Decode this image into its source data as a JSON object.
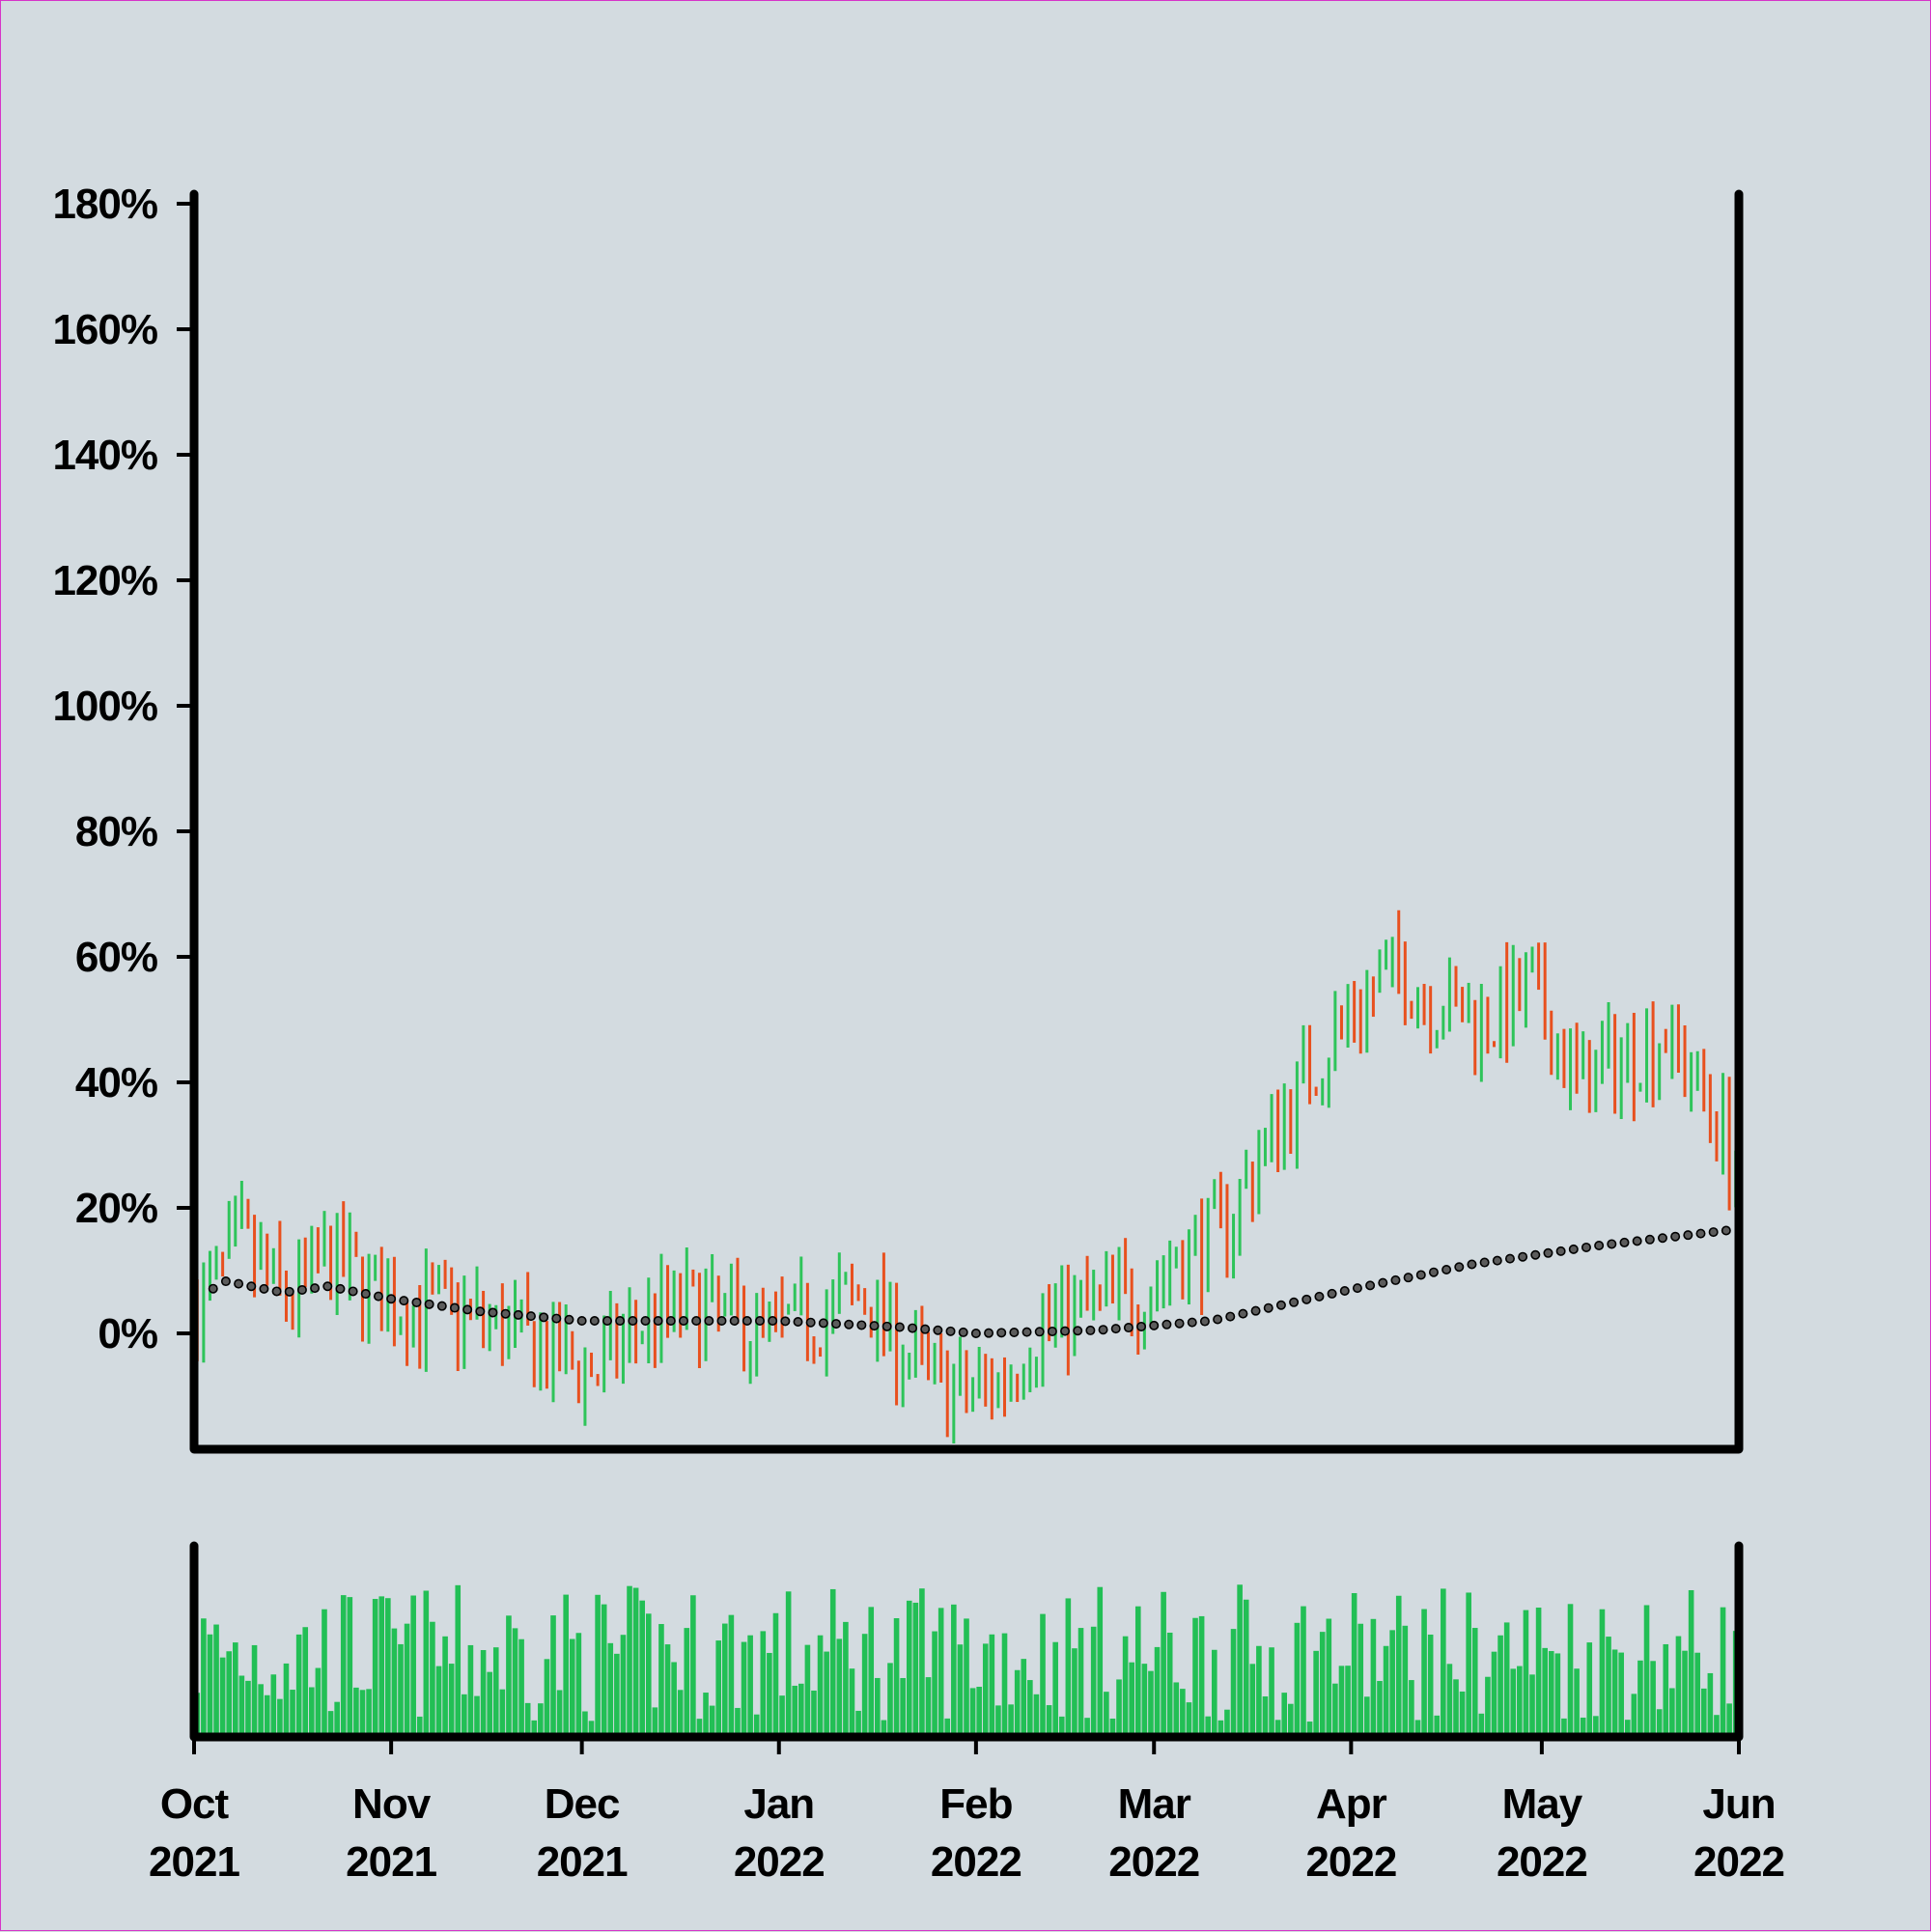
{
  "chart_data": {
    "type": "ohlc",
    "title": "",
    "xlabel": "",
    "ylabel": "",
    "x_range": [
      "2021-10-01",
      "2022-06-01"
    ],
    "ylim": [
      -18,
      180
    ],
    "y_ticks": [
      "0%",
      "20%",
      "40%",
      "60%",
      "80%",
      "100%",
      "120%",
      "140%",
      "160%",
      "180%"
    ],
    "y_tick_values": [
      0,
      20,
      40,
      60,
      80,
      100,
      120,
      140,
      160,
      180
    ],
    "x_ticks": [
      {
        "date": "2021-10-01",
        "month": "Oct",
        "year": "2021"
      },
      {
        "date": "2021-11-01",
        "month": "Nov",
        "year": "2021"
      },
      {
        "date": "2021-12-01",
        "month": "Dec",
        "year": "2021"
      },
      {
        "date": "2022-01-01",
        "month": "Jan",
        "year": "2022"
      },
      {
        "date": "2022-02-01",
        "month": "Feb",
        "year": "2022"
      },
      {
        "date": "2022-03-01",
        "month": "Mar",
        "year": "2022"
      },
      {
        "date": "2022-04-01",
        "month": "Apr",
        "year": "2022"
      },
      {
        "date": "2022-05-01",
        "month": "May",
        "year": "2022"
      },
      {
        "date": "2022-06-01",
        "month": "Jun",
        "year": "2022"
      }
    ],
    "series": [
      {
        "type": "price_close",
        "unit": "%",
        "points": [
          {
            "date": "2021-10-01",
            "value": 4
          },
          {
            "date": "2021-10-08",
            "value": 14
          },
          {
            "date": "2021-10-15",
            "value": 5
          },
          {
            "date": "2021-10-22",
            "value": 12
          },
          {
            "date": "2021-10-29",
            "value": 6
          },
          {
            "date": "2021-11-05",
            "value": 4
          },
          {
            "date": "2021-11-12",
            "value": 3
          },
          {
            "date": "2021-11-19",
            "value": 0
          },
          {
            "date": "2021-11-26",
            "value": -4
          },
          {
            "date": "2021-12-03",
            "value": -6
          },
          {
            "date": "2021-12-10",
            "value": 2
          },
          {
            "date": "2021-12-17",
            "value": 4
          },
          {
            "date": "2021-12-24",
            "value": 2
          },
          {
            "date": "2021-12-31",
            "value": 0
          },
          {
            "date": "2022-01-07",
            "value": 3
          },
          {
            "date": "2022-01-14",
            "value": 6
          },
          {
            "date": "2022-01-21",
            "value": -4
          },
          {
            "date": "2022-01-28",
            "value": -10
          },
          {
            "date": "2022-02-04",
            "value": -8
          },
          {
            "date": "2022-02-11",
            "value": 2
          },
          {
            "date": "2022-02-18",
            "value": 4
          },
          {
            "date": "2022-02-25",
            "value": 6
          },
          {
            "date": "2022-03-04",
            "value": 12
          },
          {
            "date": "2022-03-11",
            "value": 16
          },
          {
            "date": "2022-03-18",
            "value": 30
          },
          {
            "date": "2022-03-25",
            "value": 42
          },
          {
            "date": "2022-04-01",
            "value": 52
          },
          {
            "date": "2022-04-08",
            "value": 58
          },
          {
            "date": "2022-04-15",
            "value": 52
          },
          {
            "date": "2022-04-22",
            "value": 50
          },
          {
            "date": "2022-04-29",
            "value": 54
          },
          {
            "date": "2022-05-06",
            "value": 40
          },
          {
            "date": "2022-05-13",
            "value": 44
          },
          {
            "date": "2022-05-20",
            "value": 48
          },
          {
            "date": "2022-05-27",
            "value": 36
          },
          {
            "date": "2022-05-31",
            "value": 28
          }
        ]
      },
      {
        "type": "moving_average",
        "unit": "%",
        "points": [
          {
            "date": "2021-10-01",
            "value": 3
          },
          {
            "date": "2021-10-05",
            "value": 8.5
          },
          {
            "date": "2021-10-15",
            "value": 6.5
          },
          {
            "date": "2021-10-22",
            "value": 7.5
          },
          {
            "date": "2021-11-01",
            "value": 5.5
          },
          {
            "date": "2021-11-15",
            "value": 3.5
          },
          {
            "date": "2021-12-01",
            "value": 2
          },
          {
            "date": "2022-01-01",
            "value": 2
          },
          {
            "date": "2022-01-20",
            "value": 1
          },
          {
            "date": "2022-02-01",
            "value": 0
          },
          {
            "date": "2022-02-20",
            "value": 0.5
          },
          {
            "date": "2022-03-10",
            "value": 2
          },
          {
            "date": "2022-04-01",
            "value": 7
          },
          {
            "date": "2022-04-20",
            "value": 11
          },
          {
            "date": "2022-05-10",
            "value": 14
          },
          {
            "date": "2022-05-31",
            "value": 16.5
          }
        ]
      }
    ],
    "volume": "shown as green bars beneath price pane; no axis values printed",
    "grid": false,
    "legend": "none"
  },
  "colors": {
    "background": "#d3dbe0",
    "up": "#2ec45a",
    "down": "#e8501e",
    "volume": "#22bf55",
    "moving_average_dot": "#3c3c3c",
    "axis": "#000000"
  }
}
